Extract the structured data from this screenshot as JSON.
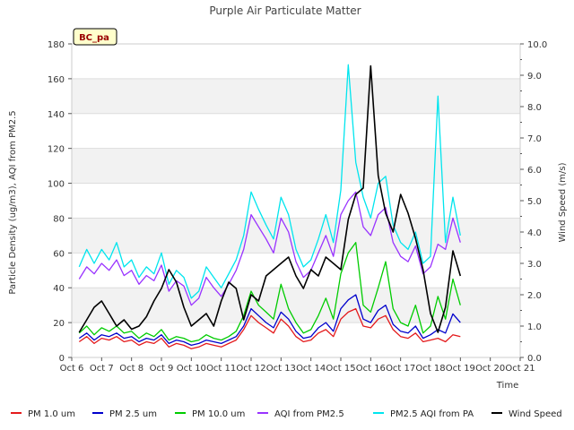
{
  "chart_data": {
    "type": "line",
    "title": "Purple Air Particulate Matter",
    "badge": "BC_pa",
    "xlabel": "Time",
    "ylabel": "Particle Density (ug/m3), AQI from PM2.5",
    "y2label": "Wind Speed (m/s)",
    "xlim": [
      6,
      21
    ],
    "ylim": [
      0,
      180
    ],
    "y2lim": [
      0,
      10
    ],
    "x_ticks": [
      6,
      7,
      8,
      9,
      10,
      11,
      12,
      13,
      14,
      15,
      16,
      17,
      18,
      19,
      20,
      21
    ],
    "x_tick_labels": [
      "Oct 6",
      "Oct 7",
      "Oct 8",
      "Oct 9",
      "Oct 10",
      "Oct 11",
      "Oct 12",
      "Oct 13",
      "Oct 14",
      "Oct 15",
      "Oct 16",
      "Oct 17",
      "Oct 18",
      "Oct 19",
      "Oct 20",
      "Oct 21"
    ],
    "y_ticks": [
      0,
      20,
      40,
      60,
      80,
      100,
      120,
      140,
      160,
      180
    ],
    "y2_ticks": [
      0,
      1,
      2,
      3,
      4,
      5,
      6,
      7,
      8,
      9,
      10
    ],
    "y2_tick_labels": [
      "0.0",
      "1.0",
      "2.0",
      "3.0",
      "4.0",
      "5.0",
      "6.0",
      "7.0",
      "8.0",
      "9.0",
      "10.0"
    ],
    "legend_position": "bottom",
    "x": [
      6.25,
      6.5,
      6.75,
      7.0,
      7.25,
      7.5,
      7.75,
      8.0,
      8.25,
      8.5,
      8.75,
      9.0,
      9.25,
      9.5,
      9.75,
      10.0,
      10.25,
      10.5,
      10.75,
      11.0,
      11.25,
      11.5,
      11.75,
      12.0,
      12.25,
      12.5,
      12.75,
      13.0,
      13.25,
      13.5,
      13.75,
      14.0,
      14.25,
      14.5,
      14.75,
      15.0,
      15.25,
      15.5,
      15.75,
      16.0,
      16.25,
      16.5,
      16.75,
      17.0,
      17.25,
      17.5,
      17.75,
      18.0,
      18.25,
      18.5,
      18.75,
      19.0
    ],
    "series": [
      {
        "name": "PM 1.0 um",
        "color": "#e41a1c",
        "axis": "left",
        "values": [
          9,
          12,
          8,
          11,
          10,
          12,
          9,
          10,
          7,
          9,
          8,
          11,
          6,
          8,
          7,
          5,
          6,
          8,
          7,
          6,
          8,
          10,
          16,
          24,
          20,
          17,
          14,
          22,
          18,
          12,
          9,
          10,
          14,
          16,
          12,
          22,
          26,
          28,
          18,
          17,
          22,
          24,
          16,
          12,
          11,
          14,
          9,
          10,
          11,
          9,
          13,
          12
        ]
      },
      {
        "name": "PM 2.5 um",
        "color": "#0000cc",
        "axis": "left",
        "values": [
          11,
          14,
          10,
          13,
          12,
          14,
          11,
          12,
          9,
          11,
          10,
          13,
          8,
          10,
          9,
          7,
          8,
          10,
          9,
          8,
          10,
          12,
          18,
          28,
          24,
          20,
          17,
          26,
          22,
          15,
          11,
          12,
          17,
          20,
          15,
          28,
          33,
          36,
          22,
          20,
          27,
          30,
          19,
          15,
          14,
          18,
          11,
          13,
          16,
          14,
          25,
          20
        ]
      },
      {
        "name": "PM 10.0 um",
        "color": "#00cc00",
        "axis": "left",
        "values": [
          14,
          18,
          13,
          17,
          15,
          18,
          14,
          15,
          11,
          14,
          12,
          16,
          10,
          12,
          11,
          9,
          10,
          13,
          11,
          10,
          12,
          15,
          24,
          38,
          30,
          26,
          22,
          42,
          28,
          20,
          14,
          16,
          24,
          34,
          22,
          48,
          60,
          66,
          30,
          26,
          40,
          55,
          28,
          20,
          18,
          30,
          14,
          18,
          35,
          22,
          45,
          30
        ]
      },
      {
        "name": "AQI from PM2.5",
        "color": "#9933ff",
        "axis": "left",
        "values": [
          45,
          52,
          48,
          54,
          50,
          56,
          47,
          50,
          42,
          47,
          44,
          53,
          38,
          44,
          41,
          30,
          34,
          46,
          40,
          35,
          42,
          50,
          62,
          82,
          75,
          68,
          60,
          80,
          72,
          55,
          46,
          50,
          60,
          70,
          58,
          82,
          90,
          95,
          75,
          70,
          82,
          86,
          66,
          58,
          55,
          64,
          48,
          52,
          65,
          62,
          80,
          66
        ]
      },
      {
        "name": "PM2.5 AQI from PA",
        "color": "#00e5ee",
        "axis": "left",
        "values": [
          52,
          62,
          54,
          62,
          56,
          66,
          52,
          56,
          46,
          52,
          48,
          60,
          42,
          50,
          46,
          34,
          38,
          52,
          46,
          40,
          48,
          56,
          70,
          95,
          85,
          76,
          68,
          92,
          82,
          62,
          52,
          56,
          68,
          82,
          66,
          96,
          168,
          112,
          92,
          80,
          100,
          104,
          76,
          66,
          62,
          72,
          54,
          58,
          150,
          66,
          92,
          70
        ]
      },
      {
        "name": "Wind Speed",
        "color": "#000000",
        "axis": "right",
        "values": [
          0.8,
          1.2,
          1.6,
          1.8,
          1.4,
          1.0,
          1.2,
          0.9,
          1.0,
          1.3,
          1.8,
          2.2,
          2.8,
          2.4,
          1.6,
          1.0,
          1.2,
          1.4,
          1.0,
          1.8,
          2.4,
          2.2,
          1.2,
          2.0,
          1.8,
          2.6,
          2.8,
          3.0,
          3.2,
          2.6,
          2.2,
          2.8,
          2.6,
          3.2,
          3.0,
          2.8,
          4.4,
          5.2,
          5.4,
          9.3,
          5.8,
          4.6,
          4.0,
          5.2,
          4.6,
          3.8,
          2.8,
          1.4,
          0.8,
          1.6,
          3.4,
          2.6
        ]
      }
    ]
  }
}
